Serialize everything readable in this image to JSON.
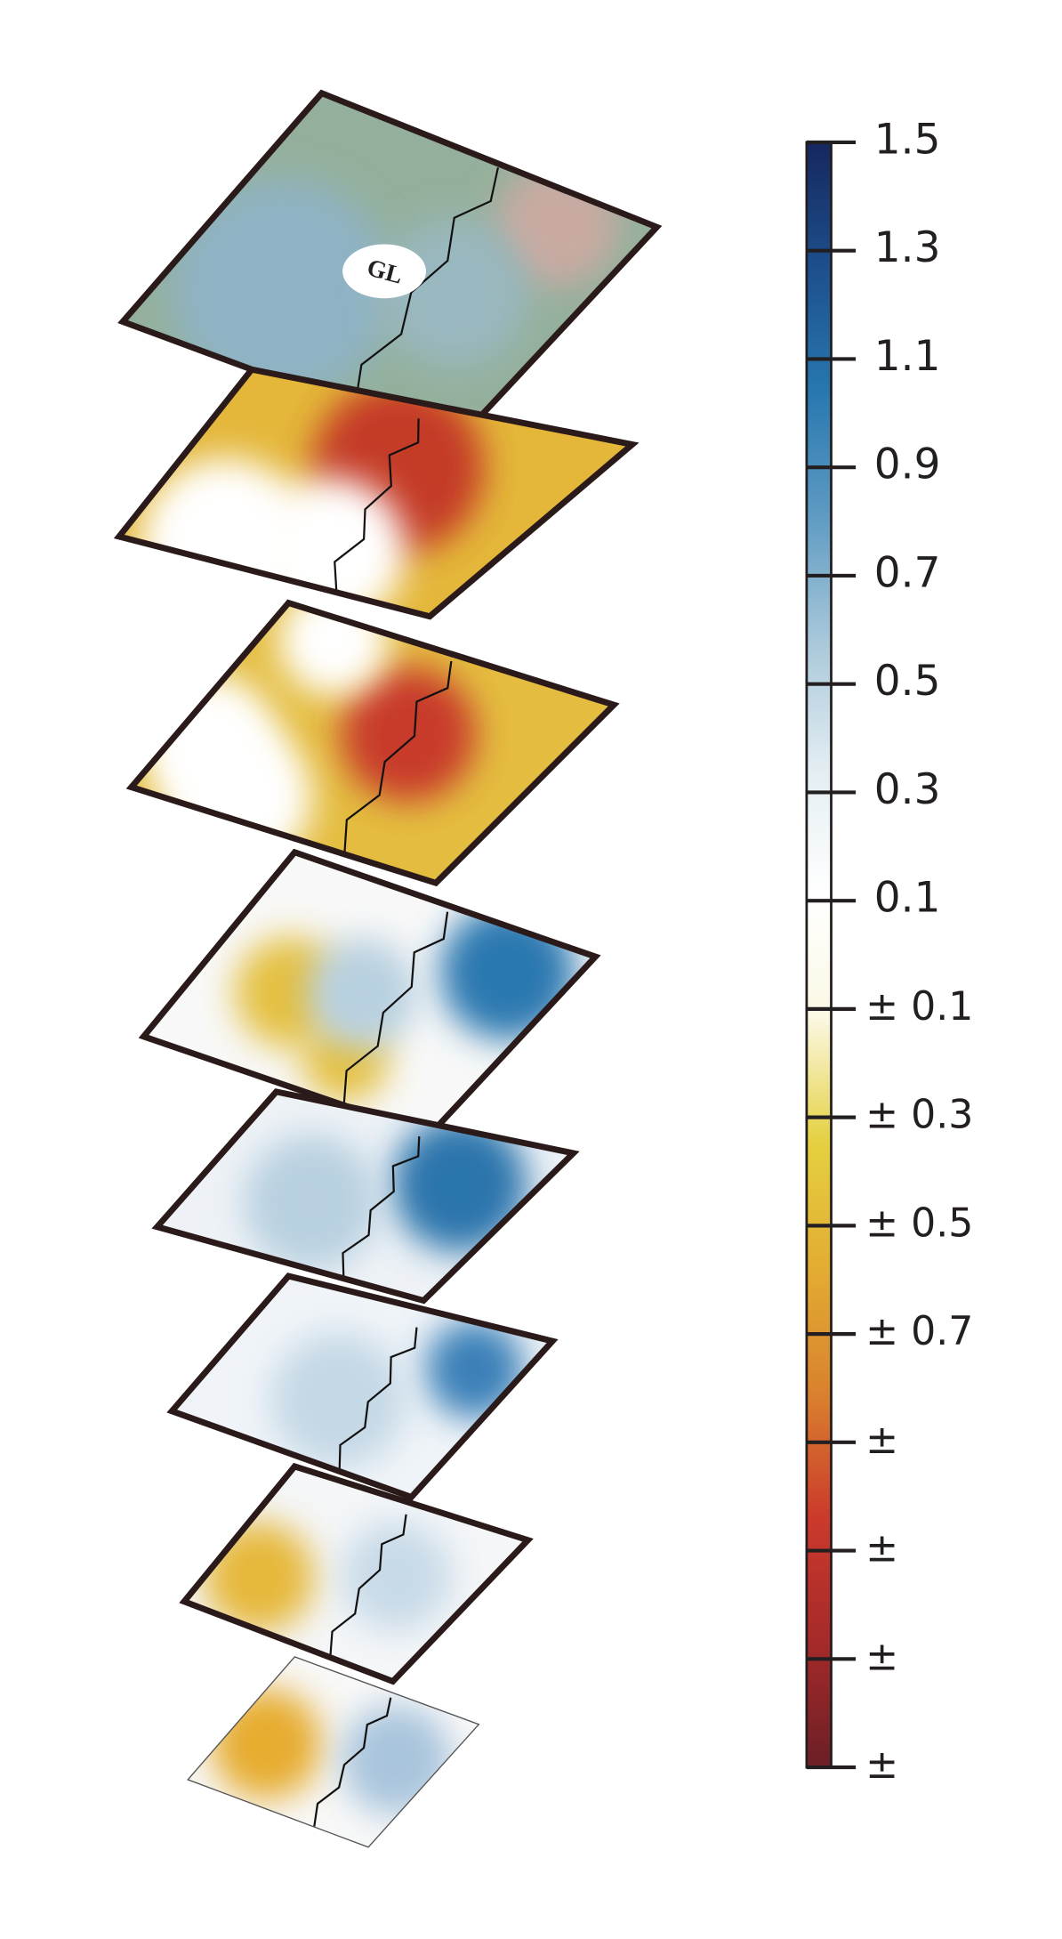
{
  "chart_data": {
    "type": "map",
    "annotations": [
      "GL"
    ],
    "ylim": [
      -1.5,
      1.5
    ],
    "yticks": [
      1.5,
      1.3,
      1.1,
      0.9,
      0.7,
      0.5,
      0.3,
      0.1,
      {
        "value": -0.1,
        "label": "± 0.1"
      },
      {
        "value": -0.3,
        "label": "± 0.3"
      },
      {
        "value": -0.5,
        "label": "± 0.5"
      },
      {
        "value": -0.7,
        "label": "± 0.7"
      },
      {
        "value": -0.9,
        "label": "±"
      },
      {
        "value": -1.1,
        "label": "±"
      },
      {
        "value": -1.3,
        "label": "±"
      },
      {
        "value": -1.5,
        "label": "±"
      }
    ],
    "colors": [
      "#6b1f26",
      "#a52a2a",
      "#cc3a2c",
      "#d9822e",
      "#e3ad32",
      "#e4d040",
      "#fbf8e4",
      "#ffffff",
      "#e2edf2",
      "#a9c8da",
      "#5f9bc2",
      "#2878b0",
      "#1d4f8c",
      "#16275e"
    ]
  }
}
